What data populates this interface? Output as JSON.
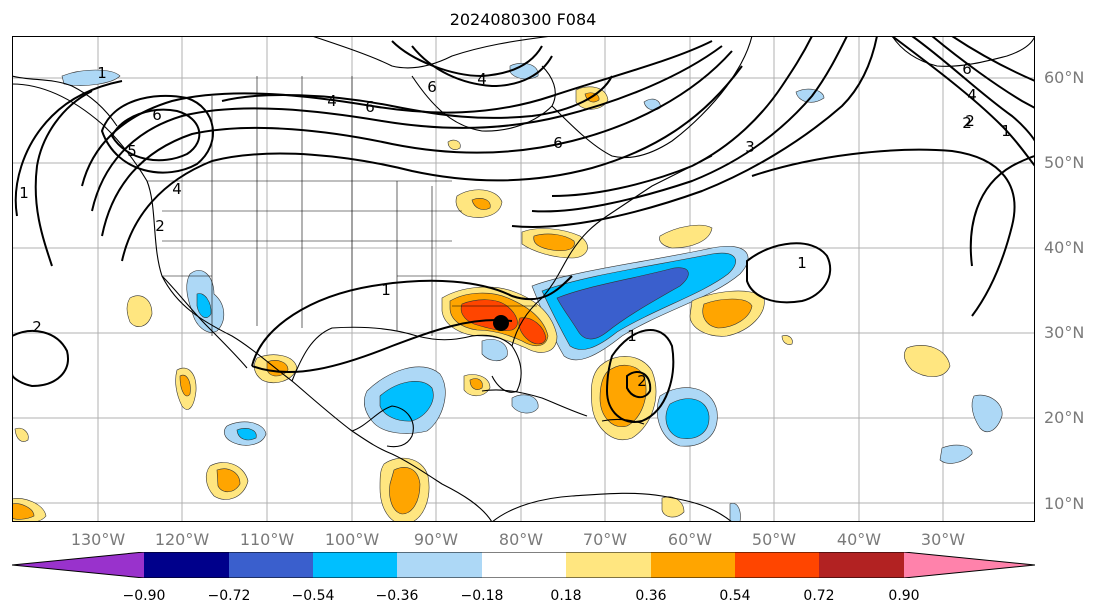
{
  "title": "2024080300 F084",
  "lat_labels": [
    "60°N",
    "50°N",
    "40°N",
    "30°N",
    "20°N",
    "10°N"
  ],
  "lon_labels": [
    "130°W",
    "120°W",
    "110°W",
    "100°W",
    "90°W",
    "80°W",
    "70°W",
    "60°W",
    "50°W",
    "40°W",
    "30°W"
  ],
  "colorbar": {
    "ticks": [
      "−0.90",
      "−0.72",
      "−0.54",
      "−0.36",
      "−0.18",
      "0.18",
      "0.36",
      "0.54",
      "0.72",
      "0.90"
    ],
    "colors": [
      "#9932cc",
      "#00008b",
      "#3a5fcd",
      "#00bfff",
      "#add8f6",
      "#ffffff",
      "#ffe680",
      "#ffa500",
      "#ff4500",
      "#b22222",
      "#ff82ab"
    ]
  },
  "contour_labels": [
    "1",
    "6",
    "4",
    "6",
    "6",
    "4",
    "5",
    "6",
    "1",
    "4",
    "2",
    "2",
    "2",
    "1",
    "1",
    "2",
    "1",
    "6",
    "2",
    "4",
    "3",
    "1"
  ],
  "marker": {
    "name": "center-dot",
    "lat": 31.2,
    "lon": -81.5
  },
  "chart_data": {
    "type": "heatmap",
    "title": "2024080300 F084",
    "projection": "PlateCarree",
    "lon_range": [
      -137,
      -16
    ],
    "lat_range": [
      8,
      65
    ],
    "grid": true,
    "colorbar_levels": [
      -0.9,
      -0.72,
      -0.54,
      -0.36,
      -0.18,
      0.18,
      0.36,
      0.54,
      0.72,
      0.9
    ],
    "contour_levels": [
      1,
      2,
      3,
      4,
      5,
      6
    ]
  }
}
